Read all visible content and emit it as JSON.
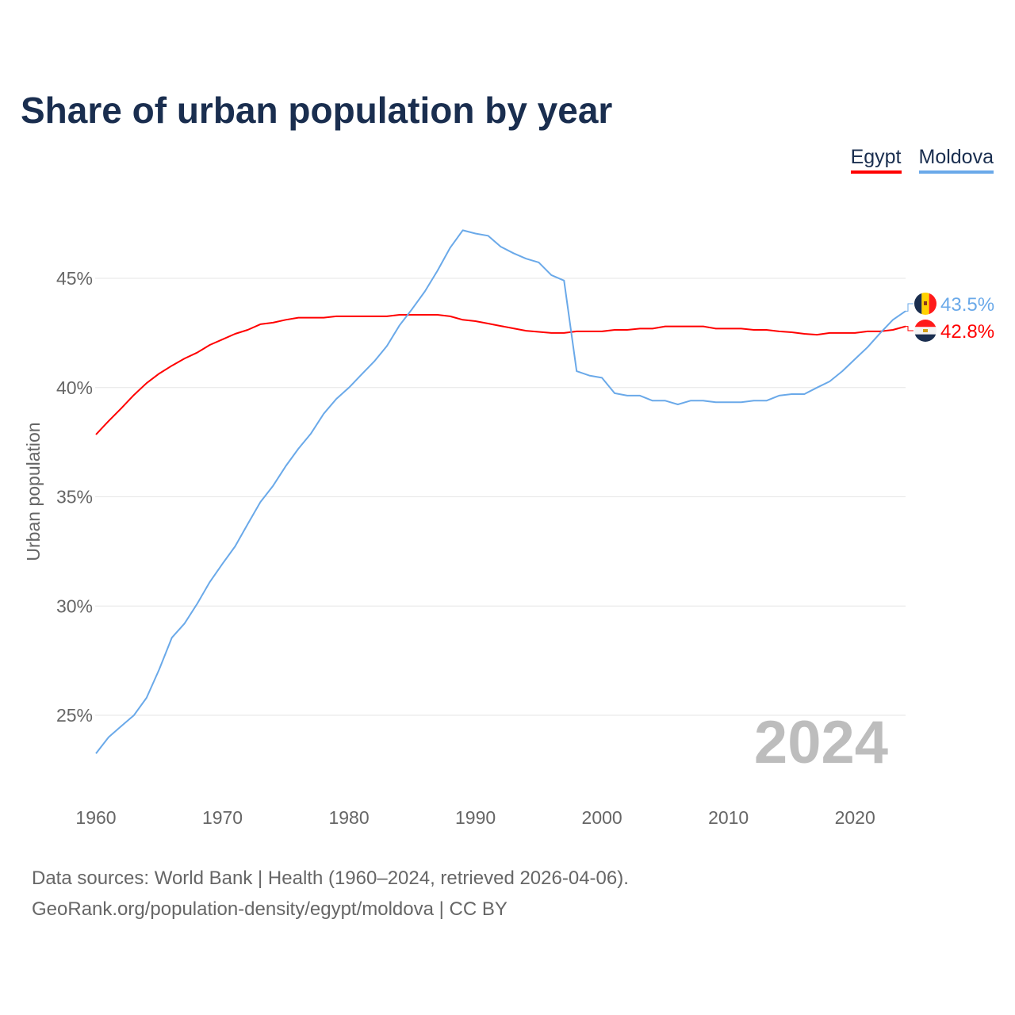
{
  "title": "Share of urban population by year",
  "footer": {
    "line1": "Data sources: World Bank | Health (1960–2024, retrieved 2026-04-06).",
    "line2": "GeoRank.org/population-density/egypt/moldova | CC BY"
  },
  "year_watermark": "2024",
  "chart_data": {
    "type": "line",
    "title": "Share of urban population by year",
    "xlabel": "",
    "ylabel": "Urban population",
    "xlim": [
      1960,
      2024
    ],
    "ylim": [
      22,
      48.5
    ],
    "xticks": [
      1960,
      1970,
      1980,
      1990,
      2000,
      2010,
      2020
    ],
    "xtick_labels": [
      "1960",
      "1970",
      "1980",
      "1990",
      "2000",
      "2010",
      "2020"
    ],
    "yticks": [
      25,
      30,
      35,
      40,
      45
    ],
    "ytick_labels": [
      "25%",
      "30%",
      "35%",
      "40%",
      "45%"
    ],
    "grid": true,
    "legend_position": "top-right",
    "series": [
      {
        "name": "Egypt",
        "color": "#ff0000",
        "end_label": "42.8%",
        "values": [
          37.85,
          38.47,
          39.05,
          39.66,
          40.2,
          40.64,
          41.0,
          41.33,
          41.6,
          41.95,
          42.2,
          42.46,
          42.64,
          42.9,
          42.97,
          43.1,
          43.2,
          43.2,
          43.2,
          43.26,
          43.26,
          43.26,
          43.26,
          43.26,
          43.33,
          43.33,
          43.33,
          43.33,
          43.26,
          43.1,
          43.04,
          42.93,
          42.82,
          42.71,
          42.6,
          42.55,
          42.5,
          42.5,
          42.57,
          42.57,
          42.57,
          42.64,
          42.64,
          42.7,
          42.7,
          42.8,
          42.8,
          42.8,
          42.8,
          42.7,
          42.7,
          42.7,
          42.64,
          42.64,
          42.57,
          42.53,
          42.46,
          42.42,
          42.5,
          42.5,
          42.5,
          42.57,
          42.57,
          42.64,
          42.8
        ]
      },
      {
        "name": "Moldova",
        "color": "#6aa9e9",
        "end_label": "43.5%",
        "values": [
          23.25,
          24.0,
          24.5,
          25.0,
          25.8,
          27.1,
          28.55,
          29.2,
          30.1,
          31.1,
          31.93,
          32.73,
          33.75,
          34.76,
          35.5,
          36.4,
          37.2,
          37.9,
          38.8,
          39.48,
          40.0,
          40.6,
          41.2,
          41.9,
          42.85,
          43.6,
          44.4,
          45.35,
          46.4,
          47.2,
          47.05,
          46.95,
          46.45,
          46.15,
          45.9,
          45.73,
          45.15,
          44.9,
          40.75,
          40.55,
          40.45,
          39.74,
          39.63,
          39.63,
          39.4,
          39.4,
          39.23,
          39.4,
          39.4,
          39.33,
          39.33,
          39.33,
          39.4,
          39.4,
          39.63,
          39.7,
          39.7,
          40.0,
          40.28,
          40.75,
          41.3,
          41.85,
          42.5,
          43.1,
          43.5
        ]
      }
    ]
  }
}
